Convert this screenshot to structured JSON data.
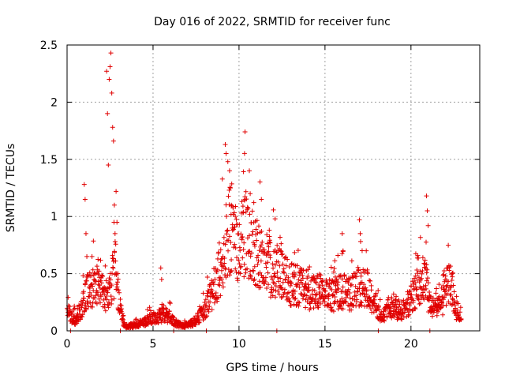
{
  "chart_data": {
    "type": "scatter",
    "title": "Day 016 of 2022, SRMTID for receiver func",
    "xlabel": "GPS time / hours",
    "ylabel": "SRMTID / TECUs",
    "xlim": [
      0,
      24
    ],
    "ylim": [
      0,
      2.5
    ],
    "xticks": [
      "0",
      "5",
      "10",
      "15",
      "20"
    ],
    "yticks": [
      "0",
      "0.5",
      "1",
      "1.5",
      "2",
      "2.5"
    ],
    "grid": true,
    "marker": "+",
    "color": "#e00000",
    "series": [
      {
        "name": "SRMTID",
        "baseline": [
          [
            0.0,
            0.26
          ],
          [
            0.2,
            0.12
          ],
          [
            0.5,
            0.1
          ],
          [
            0.8,
            0.18
          ],
          [
            1.0,
            0.3
          ],
          [
            1.3,
            0.35
          ],
          [
            1.6,
            0.4
          ],
          [
            1.9,
            0.34
          ],
          [
            2.2,
            0.3
          ],
          [
            2.5,
            0.35
          ],
          [
            2.8,
            0.55
          ],
          [
            3.0,
            0.25
          ],
          [
            3.3,
            0.05
          ],
          [
            3.6,
            0.04
          ],
          [
            4.0,
            0.05
          ],
          [
            4.4,
            0.07
          ],
          [
            4.8,
            0.1
          ],
          [
            5.2,
            0.12
          ],
          [
            5.6,
            0.14
          ],
          [
            6.0,
            0.12
          ],
          [
            6.4,
            0.06
          ],
          [
            6.8,
            0.04
          ],
          [
            7.2,
            0.06
          ],
          [
            7.6,
            0.1
          ],
          [
            8.0,
            0.18
          ],
          [
            8.3,
            0.28
          ],
          [
            8.6,
            0.38
          ],
          [
            8.9,
            0.55
          ],
          [
            9.2,
            0.75
          ],
          [
            9.5,
            0.9
          ],
          [
            9.8,
            0.8
          ],
          [
            10.1,
            0.75
          ],
          [
            10.4,
            0.85
          ],
          [
            10.7,
            0.8
          ],
          [
            11.0,
            0.7
          ],
          [
            11.3,
            0.62
          ],
          [
            11.6,
            0.6
          ],
          [
            11.9,
            0.52
          ],
          [
            12.2,
            0.5
          ],
          [
            12.6,
            0.45
          ],
          [
            13.0,
            0.4
          ],
          [
            13.5,
            0.38
          ],
          [
            14.0,
            0.33
          ],
          [
            14.5,
            0.32
          ],
          [
            15.0,
            0.3
          ],
          [
            15.5,
            0.3
          ],
          [
            16.0,
            0.34
          ],
          [
            16.5,
            0.32
          ],
          [
            17.0,
            0.38
          ],
          [
            17.5,
            0.35
          ],
          [
            18.0,
            0.22
          ],
          [
            18.3,
            0.1
          ],
          [
            18.6,
            0.18
          ],
          [
            19.0,
            0.2
          ],
          [
            19.4,
            0.16
          ],
          [
            19.8,
            0.22
          ],
          [
            20.2,
            0.32
          ],
          [
            20.5,
            0.4
          ],
          [
            20.8,
            0.45
          ],
          [
            21.1,
            0.25
          ],
          [
            21.4,
            0.18
          ],
          [
            21.8,
            0.22
          ],
          [
            22.0,
            0.35
          ],
          [
            22.3,
            0.4
          ],
          [
            22.6,
            0.18
          ],
          [
            22.9,
            0.14
          ]
        ],
        "peaks": [
          [
            1.0,
            1.28
          ],
          [
            1.05,
            1.15
          ],
          [
            1.1,
            0.85
          ],
          [
            1.15,
            0.65
          ],
          [
            1.45,
            0.65
          ],
          [
            2.3,
            2.27
          ],
          [
            2.35,
            1.9
          ],
          [
            2.4,
            1.45
          ],
          [
            2.45,
            2.2
          ],
          [
            2.5,
            2.31
          ],
          [
            2.55,
            2.43
          ],
          [
            2.6,
            2.08
          ],
          [
            2.65,
            1.78
          ],
          [
            2.7,
            1.66
          ],
          [
            2.75,
            1.1
          ],
          [
            2.85,
            1.22
          ],
          [
            2.9,
            0.95
          ],
          [
            5.45,
            0.55
          ],
          [
            5.5,
            0.45
          ],
          [
            9.2,
            1.63
          ],
          [
            9.25,
            1.55
          ],
          [
            9.35,
            1.48
          ],
          [
            9.45,
            1.4
          ],
          [
            9.5,
            1.25
          ],
          [
            9.55,
            1.1
          ],
          [
            10.6,
            1.4
          ],
          [
            10.65,
            1.2
          ],
          [
            11.3,
            1.15
          ],
          [
            12.1,
            0.98
          ],
          [
            16.0,
            0.85
          ],
          [
            16.05,
            0.7
          ],
          [
            17.0,
            0.97
          ],
          [
            17.05,
            0.85
          ],
          [
            17.4,
            0.7
          ],
          [
            20.9,
            1.18
          ],
          [
            20.95,
            1.05
          ],
          [
            21.0,
            0.92
          ],
          [
            22.1,
            0.55
          ]
        ]
      }
    ],
    "axis_hits": [
      0.2,
      3.1,
      6.2,
      8.1,
      12.2,
      18.1,
      21.1
    ]
  }
}
